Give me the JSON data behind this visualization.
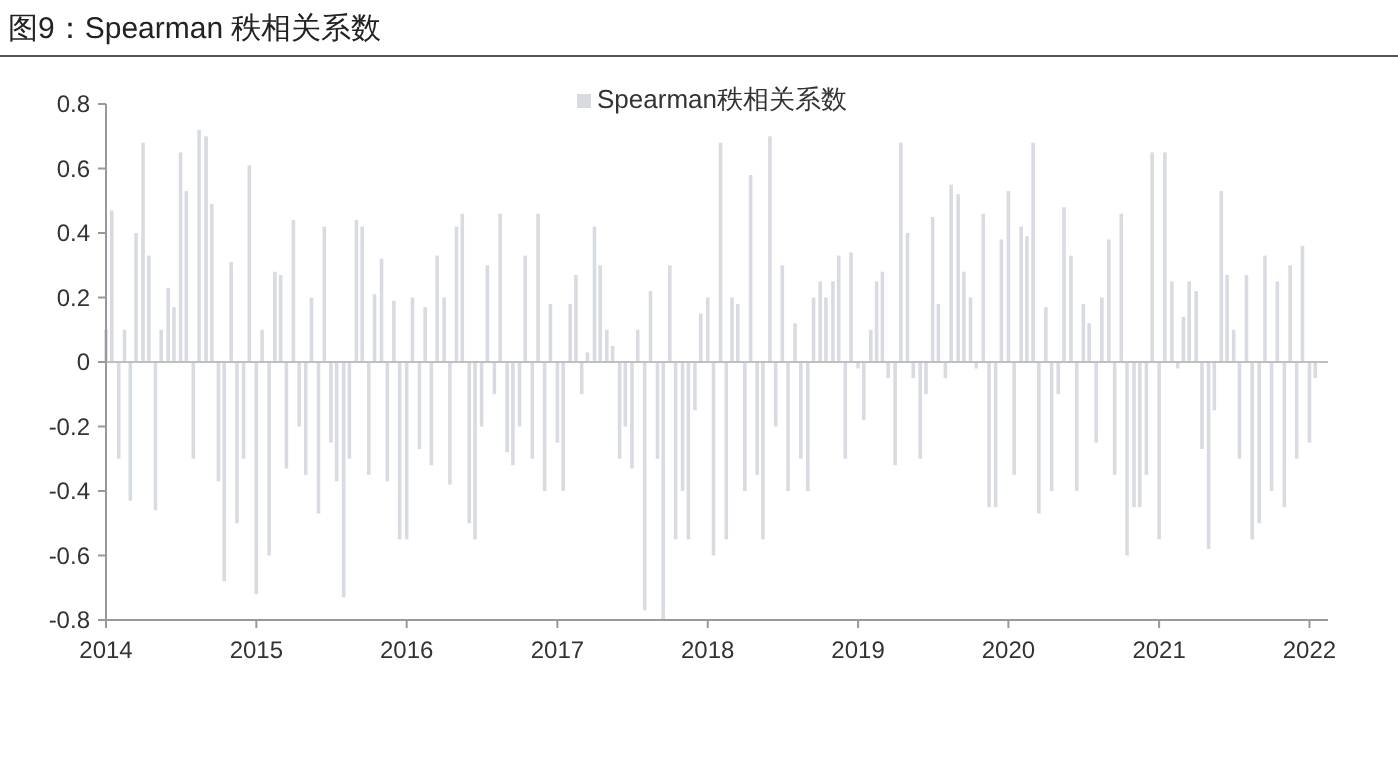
{
  "chart_data": {
    "type": "bar",
    "title": "图9：Spearman 秩相关系数",
    "xlim": [
      "2014-01-01",
      "2022-02-15"
    ],
    "xticks": [
      {
        "value": "2014-01-01",
        "label": "2014"
      },
      {
        "value": "2015-01-01",
        "label": "2015"
      },
      {
        "value": "2016-01-01",
        "label": "2016"
      },
      {
        "value": "2017-01-01",
        "label": "2017"
      },
      {
        "value": "2018-01-01",
        "label": "2018"
      },
      {
        "value": "2019-01-01",
        "label": "2019"
      },
      {
        "value": "2020-01-01",
        "label": "2020"
      },
      {
        "value": "2021-01-01",
        "label": "2021"
      },
      {
        "value": "2022-01-01",
        "label": "2022"
      }
    ],
    "ylim": [
      -0.8,
      0.8
    ],
    "yticks": [
      -0.8,
      -0.6,
      -0.4,
      -0.2,
      0,
      0.2,
      0.4,
      0.6,
      0.8
    ],
    "legend": "top",
    "series": [
      {
        "name": "Spearman秩相关系数",
        "color": "#d8dce2",
        "x": [
          "2014-01-01",
          "2014-01-15",
          "2014-02-01",
          "2014-02-15",
          "2014-03-01",
          "2014-03-15",
          "2014-04-01",
          "2014-04-15",
          "2014-05-01",
          "2014-05-15",
          "2014-06-01",
          "2014-06-15",
          "2014-07-01",
          "2014-07-15",
          "2014-08-01",
          "2014-08-15",
          "2014-09-01",
          "2014-09-15",
          "2014-10-01",
          "2014-10-15",
          "2014-11-01",
          "2014-11-15",
          "2014-12-01",
          "2014-12-15",
          "2015-01-01",
          "2015-01-15",
          "2015-02-01",
          "2015-02-15",
          "2015-03-01",
          "2015-03-15",
          "2015-04-01",
          "2015-04-15",
          "2015-05-01",
          "2015-05-15",
          "2015-06-01",
          "2015-06-15",
          "2015-07-01",
          "2015-07-15",
          "2015-08-01",
          "2015-08-15",
          "2015-09-01",
          "2015-09-15",
          "2015-10-01",
          "2015-10-15",
          "2015-11-01",
          "2015-11-15",
          "2015-12-01",
          "2015-12-15",
          "2016-01-01",
          "2016-01-15",
          "2016-02-01",
          "2016-02-15",
          "2016-03-01",
          "2016-03-15",
          "2016-04-01",
          "2016-04-15",
          "2016-05-01",
          "2016-05-15",
          "2016-06-01",
          "2016-06-15",
          "2016-07-01",
          "2016-07-15",
          "2016-08-01",
          "2016-08-15",
          "2016-09-01",
          "2016-09-15",
          "2016-10-01",
          "2016-10-15",
          "2016-11-01",
          "2016-11-15",
          "2016-12-01",
          "2016-12-15",
          "2017-01-01",
          "2017-01-15",
          "2017-02-01",
          "2017-02-15",
          "2017-03-01",
          "2017-03-15",
          "2017-04-01",
          "2017-04-15",
          "2017-05-01",
          "2017-05-15",
          "2017-06-01",
          "2017-06-15",
          "2017-07-01",
          "2017-07-15",
          "2017-08-01",
          "2017-08-15",
          "2017-09-01",
          "2017-09-15",
          "2017-10-01",
          "2017-10-15",
          "2017-11-01",
          "2017-11-15",
          "2017-12-01",
          "2017-12-15",
          "2018-01-01",
          "2018-01-15",
          "2018-02-01",
          "2018-02-15",
          "2018-03-01",
          "2018-03-15",
          "2018-04-01",
          "2018-04-15",
          "2018-05-01",
          "2018-05-15",
          "2018-06-01",
          "2018-06-15",
          "2018-07-01",
          "2018-07-15",
          "2018-08-01",
          "2018-08-15",
          "2018-09-01",
          "2018-09-15",
          "2018-10-01",
          "2018-10-15",
          "2018-11-01",
          "2018-11-15",
          "2018-12-01",
          "2018-12-15",
          "2019-01-01",
          "2019-01-15",
          "2019-02-01",
          "2019-02-15",
          "2019-03-01",
          "2019-03-15",
          "2019-04-01",
          "2019-04-15",
          "2019-05-01",
          "2019-05-15",
          "2019-06-01",
          "2019-06-15",
          "2019-07-01",
          "2019-07-15",
          "2019-08-01",
          "2019-08-15",
          "2019-09-01",
          "2019-09-15",
          "2019-10-01",
          "2019-10-15",
          "2019-11-01",
          "2019-11-15",
          "2019-12-01",
          "2019-12-15",
          "2020-01-01",
          "2020-01-15",
          "2020-02-01",
          "2020-02-15",
          "2020-03-01",
          "2020-03-15",
          "2020-04-01",
          "2020-04-15",
          "2020-05-01",
          "2020-05-15",
          "2020-06-01",
          "2020-06-15",
          "2020-07-01",
          "2020-07-15",
          "2020-08-01",
          "2020-08-15",
          "2020-09-01",
          "2020-09-15",
          "2020-10-01",
          "2020-10-15",
          "2020-11-01",
          "2020-11-15",
          "2020-12-01",
          "2020-12-15",
          "2021-01-01",
          "2021-01-15",
          "2021-02-01",
          "2021-02-15",
          "2021-03-01",
          "2021-03-15",
          "2021-04-01",
          "2021-04-15",
          "2021-05-01",
          "2021-05-15",
          "2021-06-01",
          "2021-06-15",
          "2021-07-01",
          "2021-07-15",
          "2021-08-01",
          "2021-08-15",
          "2021-09-01",
          "2021-09-15",
          "2021-10-01",
          "2021-10-15",
          "2021-11-01",
          "2021-11-15",
          "2021-12-01",
          "2021-12-15",
          "2022-01-01",
          "2022-01-15"
        ],
        "values": [
          0.1,
          0.47,
          -0.3,
          0.1,
          -0.43,
          0.4,
          0.68,
          0.33,
          -0.46,
          0.1,
          0.23,
          0.17,
          0.65,
          0.53,
          -0.3,
          0.72,
          0.7,
          0.49,
          -0.37,
          -0.68,
          0.31,
          -0.5,
          -0.3,
          0.61,
          -0.72,
          0.1,
          -0.6,
          0.28,
          0.27,
          -0.33,
          0.44,
          -0.2,
          -0.35,
          0.2,
          -0.47,
          0.42,
          -0.25,
          -0.37,
          -0.73,
          -0.3,
          0.44,
          0.42,
          -0.35,
          0.21,
          0.32,
          -0.37,
          0.19,
          -0.55,
          -0.55,
          0.2,
          -0.27,
          0.17,
          -0.32,
          0.33,
          0.2,
          -0.38,
          0.42,
          0.46,
          -0.5,
          -0.55,
          -0.2,
          0.3,
          -0.1,
          0.46,
          -0.28,
          -0.32,
          -0.2,
          0.33,
          -0.3,
          0.46,
          -0.4,
          0.18,
          -0.25,
          -0.4,
          0.18,
          0.27,
          -0.1,
          0.03,
          0.42,
          0.3,
          0.1,
          0.05,
          -0.3,
          -0.2,
          -0.33,
          0.1,
          -0.77,
          0.22,
          -0.3,
          -0.8,
          0.3,
          -0.55,
          -0.4,
          -0.55,
          -0.15,
          0.15,
          0.2,
          -0.6,
          0.68,
          -0.55,
          0.2,
          0.18,
          -0.4,
          0.58,
          -0.35,
          -0.55,
          0.7,
          -0.2,
          0.3,
          -0.4,
          0.12,
          -0.3,
          -0.4,
          0.2,
          0.25,
          0.2,
          0.25,
          0.33,
          -0.3,
          0.34,
          -0.02,
          -0.18,
          0.1,
          0.25,
          0.28,
          -0.05,
          -0.32,
          0.68,
          0.4,
          -0.05,
          -0.3,
          -0.1,
          0.45,
          0.18,
          -0.05,
          0.55,
          0.52,
          0.28,
          0.2,
          -0.02,
          0.46,
          -0.45,
          -0.45,
          0.38,
          0.53,
          -0.35,
          0.42,
          0.39,
          0.68,
          -0.47,
          0.17,
          -0.4,
          -0.1,
          0.48,
          0.33,
          -0.4,
          0.18,
          0.12,
          -0.25,
          0.2,
          0.38,
          -0.35,
          0.46,
          -0.6,
          -0.45,
          -0.45,
          -0.35,
          0.65,
          -0.55,
          0.65,
          0.25,
          -0.02,
          0.14,
          0.25,
          0.22,
          -0.27,
          -0.58,
          -0.15,
          0.53,
          0.27,
          0.1,
          -0.3,
          0.27,
          -0.55,
          -0.5,
          0.33,
          -0.4,
          0.25,
          -0.45,
          0.3,
          -0.3,
          0.36,
          -0.25,
          -0.05
        ]
      }
    ]
  }
}
